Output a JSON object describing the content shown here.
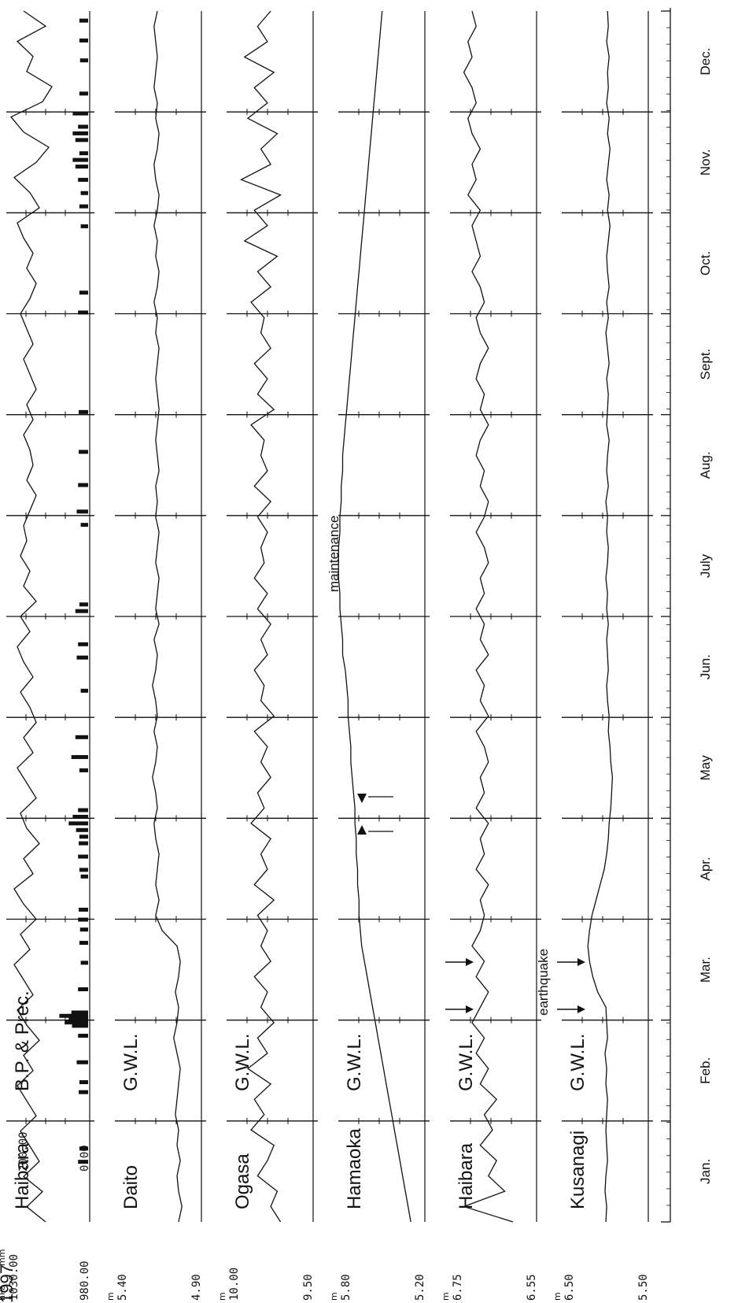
{
  "chart_data": {
    "type": "line",
    "year": "1997",
    "months": [
      "Jan.",
      "Feb.",
      "Mar.",
      "Apr.",
      "May",
      "Jun.",
      "July",
      "Aug.",
      "Sept.",
      "Oct.",
      "Nov.",
      "Dec."
    ],
    "panels": [
      {
        "id": "haibara-bp",
        "station": "Haibara",
        "variable": "B.P. & Prec.",
        "units": [
          "hPa",
          "mm"
        ],
        "bp_ticks": [
          "1030.00",
          "980.00"
        ],
        "prec_ticks": [
          "200.00",
          "0.00"
        ],
        "ylim": [
          980,
          1030
        ],
        "prec_ylim": [
          0,
          200
        ],
        "level": [
          1006,
          1018,
          1008,
          1020,
          1010,
          1016,
          1022,
          1012,
          1018,
          1024,
          1014,
          1020,
          1010,
          1018,
          1024,
          1014,
          1020,
          1026,
          1016,
          1022,
          1012,
          1020,
          1026,
          1014,
          1020,
          1010,
          1018,
          1022,
          1012,
          1018,
          1024,
          1014,
          1020,
          1012,
          1016,
          1022,
          1014,
          1020,
          1024,
          1016,
          1022,
          1012,
          1020,
          1016,
          1022,
          1018,
          1020,
          1016,
          1012,
          1018,
          1014,
          1016,
          1020,
          1014,
          1018,
          1012,
          1016,
          1020,
          1014,
          1018,
          1022,
          1016,
          1012,
          1018,
          1014,
          1020,
          1024,
          1010,
          1016,
          1026,
          1012,
          1004,
          1020,
          1028,
          1008,
          1002,
          1018,
          1014,
          1024,
          1006,
          1020
        ],
        "precipitation": [
          [
            18,
            40
          ],
          [
            22,
            30
          ],
          [
            39,
            35
          ],
          [
            42,
            30
          ],
          [
            48,
            50
          ],
          [
            56,
            40
          ],
          [
            59,
            85
          ],
          [
            60,
            140
          ],
          [
            61,
            110
          ],
          [
            62,
            180
          ],
          [
            63,
            90
          ],
          [
            70,
            40
          ],
          [
            78,
            20
          ],
          [
            84,
            30
          ],
          [
            88,
            25
          ],
          [
            91,
            40
          ],
          [
            94,
            35
          ],
          [
            104,
            20
          ],
          [
            106,
            30
          ],
          [
            110,
            40
          ],
          [
            114,
            35
          ],
          [
            116,
            30
          ],
          [
            118,
            55
          ],
          [
            120,
            110
          ],
          [
            122,
            80
          ],
          [
            124,
            40
          ],
          [
            136,
            30
          ],
          [
            140,
            90
          ],
          [
            146,
            60
          ],
          [
            160,
            20
          ],
          [
            170,
            50
          ],
          [
            174,
            40
          ],
          [
            184,
            60
          ],
          [
            186,
            30
          ],
          [
            210,
            20
          ],
          [
            214,
            50
          ],
          [
            222,
            40
          ],
          [
            232,
            35
          ],
          [
            244,
            35
          ],
          [
            274,
            40
          ],
          [
            280,
            30
          ],
          [
            300,
            20
          ],
          [
            306,
            30
          ],
          [
            310,
            20
          ],
          [
            314,
            40
          ],
          [
            318,
            60
          ],
          [
            320,
            80
          ],
          [
            322,
            30
          ],
          [
            326,
            60
          ],
          [
            328,
            80
          ],
          [
            330,
            40
          ],
          [
            334,
            80
          ],
          [
            340,
            30
          ],
          [
            350,
            25
          ],
          [
            356,
            30
          ],
          [
            362,
            30
          ]
        ]
      },
      {
        "id": "daito",
        "station": "Daito",
        "variable": "G.W.L.",
        "unit": "m",
        "ticks": [
          "5.40",
          "4.90"
        ],
        "ylim": [
          4.9,
          5.4
        ],
        "level": [
          5.02,
          5.0,
          5.02,
          5.03,
          5.01,
          5.03,
          5.02,
          5.04,
          5.03,
          5.02,
          5.01,
          5.03,
          5.05,
          5.03,
          5.02,
          5.04,
          5.02,
          5.01,
          5.03,
          5.12,
          5.16,
          5.14,
          5.16,
          5.15,
          5.14,
          5.16,
          5.17,
          5.15,
          5.16,
          5.18,
          5.16,
          5.15,
          5.17,
          5.15,
          5.16,
          5.18,
          5.16,
          5.15,
          5.17,
          5.14,
          5.16,
          5.15,
          5.14,
          5.16,
          5.15,
          5.14,
          5.16,
          5.15,
          5.16,
          5.14,
          5.15,
          5.16,
          5.15,
          5.14,
          5.15,
          5.16,
          5.15,
          5.14,
          5.16,
          5.15,
          5.17,
          5.15,
          5.14,
          5.16,
          5.15,
          5.17,
          5.15,
          5.14,
          5.16,
          5.17,
          5.15,
          5.14,
          5.16,
          5.15,
          5.17,
          5.16,
          5.15,
          5.16,
          5.17,
          5.15
        ]
      },
      {
        "id": "ogasa",
        "station": "Ogasa",
        "variable": "G.W.L.",
        "unit": "m",
        "ticks": [
          "10.00",
          "9.50"
        ],
        "ylim": [
          9.5,
          10.0
        ],
        "level": [
          9.68,
          9.74,
          9.7,
          9.82,
          9.76,
          9.72,
          9.86,
          9.78,
          9.84,
          9.74,
          9.88,
          9.76,
          9.82,
          9.72,
          9.8,
          9.76,
          9.84,
          9.74,
          9.8,
          9.76,
          9.82,
          9.72,
          9.84,
          9.76,
          9.8,
          9.74,
          9.86,
          9.78,
          9.82,
          9.74,
          9.8,
          9.76,
          9.84,
          9.72,
          9.8,
          9.78,
          9.84,
          9.76,
          9.8,
          9.74,
          9.82,
          9.76,
          9.84,
          9.78,
          9.8,
          9.76,
          9.82,
          9.74,
          9.84,
          9.76,
          9.8,
          9.78,
          9.86,
          9.72,
          9.82,
          9.76,
          9.84,
          9.74,
          9.8,
          9.78,
          9.86,
          9.74,
          9.82,
          9.7,
          9.9,
          9.76,
          9.84,
          9.68,
          9.92,
          9.74,
          9.8,
          9.7,
          9.88,
          9.76,
          9.84,
          9.72,
          9.9,
          9.76,
          9.82,
          9.74
        ]
      },
      {
        "id": "hamaoka",
        "station": "Hamaoka",
        "variable": "G.W.L.",
        "unit": "m",
        "ticks": [
          "5.80",
          "5.20"
        ],
        "ylim": [
          5.2,
          5.8
        ],
        "level": [
          5.28,
          5.3,
          5.32,
          5.34,
          5.36,
          5.38,
          5.4,
          5.42,
          5.44,
          5.46,
          5.48,
          5.5,
          5.52,
          5.54,
          5.56,
          5.58,
          5.6,
          5.62,
          5.64,
          5.65,
          5.66,
          5.66,
          5.67,
          5.67,
          5.68,
          5.68,
          5.69,
          5.69,
          5.7,
          5.71,
          5.72,
          5.72,
          5.73,
          5.74,
          5.74,
          5.75,
          5.76,
          5.78,
          5.78,
          5.79,
          5.8,
          5.8,
          5.81,
          5.81,
          5.81,
          5.8,
          5.8,
          5.79,
          5.79,
          5.78,
          5.78,
          5.77,
          5.76,
          5.75,
          5.74,
          5.73,
          5.72,
          5.71,
          5.7,
          5.69,
          5.68,
          5.67,
          5.66,
          5.65,
          5.64,
          5.63,
          5.62,
          5.61,
          5.6,
          5.59,
          5.58,
          5.57,
          5.56,
          5.55,
          5.54,
          5.53,
          5.52,
          5.51,
          5.5,
          5.49
        ],
        "annotation": "maintenance"
      },
      {
        "id": "haibara-gwl",
        "station": "Haibara",
        "variable": "G.W.L.",
        "unit": "m",
        "ticks": [
          "6.75",
          "6.55"
        ],
        "ylim": [
          6.55,
          6.75
        ],
        "level": [
          6.6,
          6.72,
          6.62,
          6.66,
          6.64,
          6.68,
          6.65,
          6.67,
          6.64,
          6.68,
          6.66,
          6.69,
          6.67,
          6.7,
          6.68,
          6.66,
          6.69,
          6.67,
          6.7,
          6.68,
          6.67,
          6.68,
          6.66,
          6.69,
          6.67,
          6.68,
          6.66,
          6.69,
          6.67,
          6.68,
          6.66,
          6.67,
          6.69,
          6.66,
          6.68,
          6.67,
          6.69,
          6.66,
          6.68,
          6.67,
          6.69,
          6.67,
          6.68,
          6.66,
          6.67,
          6.69,
          6.67,
          6.66,
          6.68,
          6.67,
          6.69,
          6.68,
          6.66,
          6.68,
          6.67,
          6.69,
          6.68,
          6.66,
          6.68,
          6.69,
          6.67,
          6.68,
          6.7,
          6.68,
          6.69,
          6.7,
          6.68,
          6.71,
          6.69,
          6.7,
          6.68,
          6.7,
          6.71,
          6.69,
          6.7,
          6.72,
          6.7,
          6.71,
          6.69,
          6.7
        ]
      },
      {
        "id": "kusanagi",
        "station": "Kusanagi",
        "variable": "G.W.L.",
        "unit": "m",
        "ticks": [
          "6.50",
          "5.50"
        ],
        "ylim": [
          5.5,
          6.5
        ],
        "level": [
          5.98,
          5.97,
          5.99,
          5.98,
          5.96,
          5.97,
          5.98,
          5.97,
          5.96,
          5.98,
          5.97,
          5.99,
          5.96,
          5.97,
          5.98,
          6.08,
          6.14,
          6.18,
          6.2,
          6.18,
          6.15,
          6.1,
          6.05,
          6.0,
          5.97,
          5.95,
          5.94,
          5.92,
          5.91,
          5.9,
          5.92,
          5.93,
          5.95,
          5.94,
          5.96,
          5.97,
          5.95,
          5.96,
          5.97,
          5.95,
          5.97,
          5.96,
          5.98,
          5.96,
          5.95,
          5.97,
          5.96,
          5.98,
          5.95,
          5.97,
          5.96,
          5.94,
          5.97,
          5.96,
          5.95,
          5.97,
          5.94,
          5.96,
          5.98,
          5.95,
          5.97,
          5.94,
          5.96,
          5.97,
          5.95,
          5.93,
          5.96,
          5.94,
          5.97,
          5.95,
          5.93,
          5.96,
          5.94,
          5.97,
          5.95,
          5.96,
          5.94,
          5.97,
          5.95,
          5.96
        ],
        "annotation": "earthquake"
      }
    ]
  }
}
